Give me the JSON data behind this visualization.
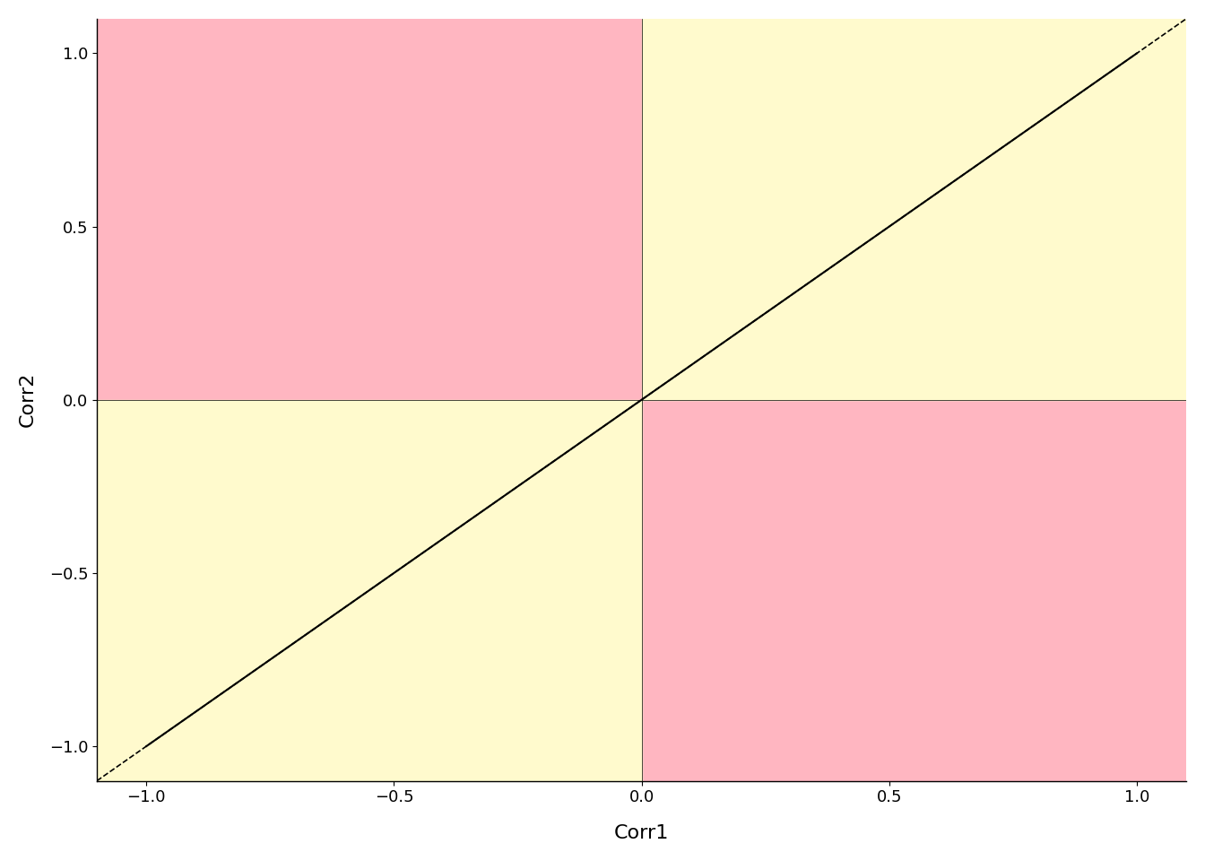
{
  "xlim": [
    -1.1,
    1.1
  ],
  "ylim": [
    -1.1,
    1.1
  ],
  "xlabel": "Corr1",
  "ylabel": "Corr2",
  "xticks": [
    -1.0,
    -0.5,
    0.0,
    0.5,
    1.0
  ],
  "yticks": [
    -1.0,
    -0.5,
    0.0,
    0.5,
    1.0
  ],
  "color_pink": "#FFB6C1",
  "color_yellow": "#FFFACD",
  "diagonal_color": "black",
  "curve_color": "black",
  "background_color": "white",
  "title": "",
  "figsize": [
    13.44,
    9.6
  ],
  "dpi": 100
}
